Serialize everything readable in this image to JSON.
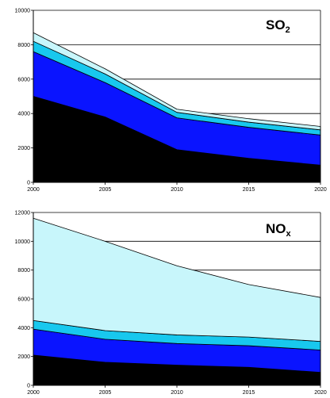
{
  "colors": {
    "background": "#ffffff",
    "grid": "#000000",
    "layer_1": "#000000",
    "layer_2": "#0a14ff",
    "layer_3": "#18c8ee",
    "layer_4": "#c8f6fb"
  },
  "chart_data": [
    {
      "type": "area",
      "stacked": true,
      "title": "SO",
      "title_subscript": "2",
      "x": [
        2000,
        2005,
        2010,
        2015,
        2020
      ],
      "x_ticks": [
        "2000",
        "2005",
        "2010",
        "2015",
        "2020"
      ],
      "y_ticks": [
        "0",
        "2000",
        "4000",
        "6000",
        "8000",
        "10000"
      ],
      "ylim": [
        0,
        10000
      ],
      "grid": "horizontal",
      "series": [
        {
          "values": [
            5000,
            3800,
            1900,
            1400,
            1000
          ]
        },
        {
          "values": [
            2600,
            2000,
            1850,
            1800,
            1750
          ]
        },
        {
          "values": [
            600,
            500,
            320,
            300,
            300
          ]
        },
        {
          "values": [
            500,
            300,
            180,
            200,
            200
          ]
        }
      ]
    },
    {
      "type": "area",
      "stacked": true,
      "title": "NO",
      "title_subscript": "x",
      "x": [
        2000,
        2005,
        2010,
        2015,
        2020
      ],
      "x_ticks": [
        "2000",
        "2005",
        "2010",
        "2015",
        "2020"
      ],
      "y_ticks": [
        "0",
        "2000",
        "4000",
        "6000",
        "8000",
        "10000",
        "12000"
      ],
      "ylim": [
        0,
        12000
      ],
      "grid": "horizontal",
      "series": [
        {
          "values": [
            2100,
            1600,
            1400,
            1250,
            900
          ]
        },
        {
          "values": [
            1800,
            1600,
            1500,
            1500,
            1550
          ]
        },
        {
          "values": [
            600,
            600,
            600,
            600,
            600
          ]
        },
        {
          "values": [
            7100,
            6200,
            4800,
            3650,
            3050
          ]
        }
      ]
    }
  ]
}
